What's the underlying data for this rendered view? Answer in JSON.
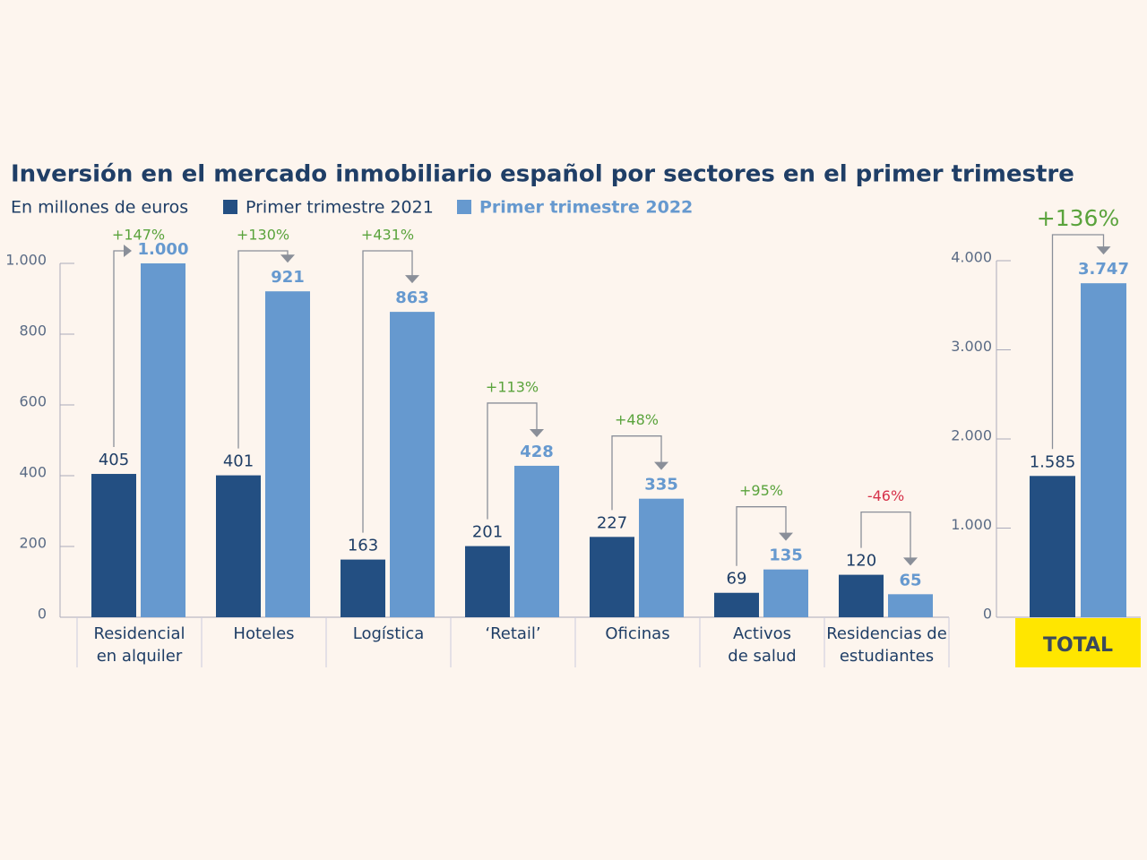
{
  "chart_data": [
    {
      "type": "bar",
      "title": "Inversión en el mercado inmobiliario español por sectores en el primer trimestre",
      "subtitle": "En millones de euros",
      "categories": [
        [
          "Residencial",
          "en alquiler"
        ],
        [
          "Hoteles"
        ],
        [
          "Logística"
        ],
        [
          "‘Retail’"
        ],
        [
          "Oficinas"
        ],
        [
          "Activos",
          "de salud"
        ],
        [
          "Residencias de",
          "estudiantes"
        ]
      ],
      "series": [
        {
          "name": "Primer trimestre 2021",
          "color": "#234f82",
          "values": [
            405,
            401,
            163,
            201,
            227,
            69,
            120
          ]
        },
        {
          "name": "Primer trimestre 2022",
          "color": "#6699cf",
          "values": [
            1000,
            921,
            863,
            428,
            335,
            135,
            65
          ],
          "value_labels": [
            "1.000",
            "921",
            "863",
            "428",
            "335",
            "135",
            "65"
          ]
        }
      ],
      "change_labels": [
        "+147%",
        "+130%",
        "+431%",
        "+113%",
        "+48%",
        "+95%",
        "-46%"
      ],
      "positive_color": "#5aa33c",
      "negative_color": "#d6324a",
      "ylim": [
        0,
        1000
      ],
      "yticks": [
        0,
        200,
        400,
        600,
        800,
        {
          "value": 1000,
          "label": "1.000"
        }
      ],
      "legend": "top-left"
    },
    {
      "type": "bar",
      "categories": [
        [
          "TOTAL"
        ]
      ],
      "series": [
        {
          "color": "#234f82",
          "values": [
            1585
          ],
          "value_labels": [
            "1.585"
          ]
        },
        {
          "color": "#6699cf",
          "values": [
            3747
          ],
          "value_labels": [
            "3.747"
          ]
        }
      ],
      "change_labels": [
        "+136%"
      ],
      "positive_color": "#5aa33c",
      "negative_color": "#d6324a",
      "ylim": [
        0,
        4000
      ],
      "yticks": [
        0,
        {
          "value": 1000,
          "label": "1.000"
        },
        {
          "value": 2000,
          "label": "2.000"
        },
        {
          "value": 3000,
          "label": "3.000"
        },
        {
          "value": 4000,
          "label": "4.000"
        }
      ]
    }
  ]
}
